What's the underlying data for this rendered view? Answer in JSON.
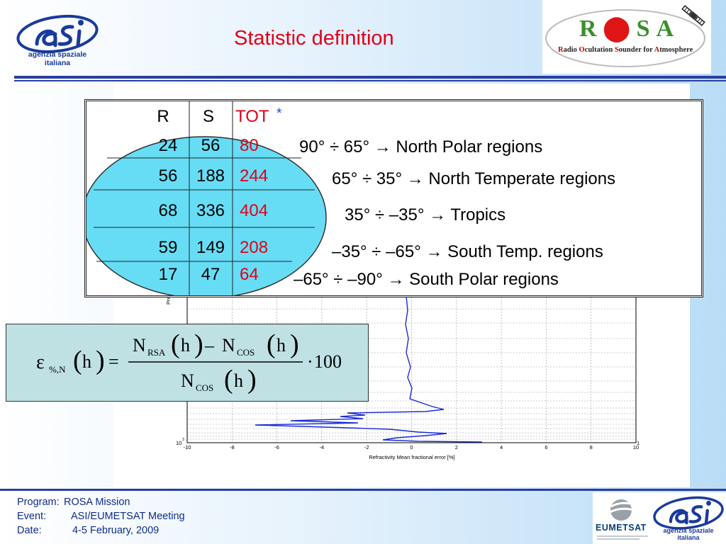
{
  "header": {
    "title": "Statistic definition",
    "asi_logo_lines": [
      "agenzia spaziale",
      "italiana"
    ],
    "rosa": {
      "letters": [
        "R",
        "O",
        "S",
        "A"
      ],
      "subtitle": [
        {
          "cap": "R",
          "rest": "adio "
        },
        {
          "cap": "O",
          "rest": "cultation "
        },
        {
          "cap": "S",
          "rest": "ounder for "
        },
        {
          "cap": "A",
          "rest": "tmosphere"
        }
      ]
    }
  },
  "table": {
    "headers": {
      "r": "R",
      "s": "S",
      "tot": "TOT",
      "star": "*"
    },
    "rows": [
      {
        "r": "24",
        "s": "56",
        "tot": "80"
      },
      {
        "r": "56",
        "s": "188",
        "tot": "244"
      },
      {
        "r": "68",
        "s": "336",
        "tot": "404"
      },
      {
        "r": "59",
        "s": "149",
        "tot": "208"
      },
      {
        "r": "17",
        "s": "47",
        "tot": "64"
      }
    ],
    "regions": [
      "90° ÷ 65° → North Polar regions",
      "65° ÷ 35° → North Temperate regions",
      "35° ÷ –35° → Tropics",
      "–35° ÷ –65° → South Temp. regions",
      "–65° ÷ –90° → South Polar regions"
    ]
  },
  "plot": {
    "xlabel": "Refractivity Mean fractional error [%]",
    "ylabel_visible": "Pre",
    "x_ticks": [
      "-10",
      "-8",
      "-6",
      "-4",
      "-2",
      "0",
      "2",
      "4",
      "6",
      "8",
      "10"
    ],
    "y_tick_base": "10",
    "y_tick_exp": "3",
    "y_tick_right": "1"
  },
  "formula": {
    "epsilon": "ε",
    "eps_sub": "%,N",
    "h": "h",
    "equals": "=",
    "N": "N",
    "sub_rsa": "RSA",
    "sub_cos": "COS",
    "minus": "–",
    "times": "·",
    "hundred": "100"
  },
  "footer": {
    "rows": [
      {
        "label": "Program:",
        "value": "ROSA Mission"
      },
      {
        "label": "Event:",
        "value": "ASI/EUMETSAT Meeting"
      },
      {
        "label": "Date:",
        "value": "4-5 February, 2009"
      }
    ],
    "eumetsat": "EUMETSAT",
    "asi_logo_lines": [
      "agenzia spaziale",
      "italiana"
    ]
  },
  "colors": {
    "title": "#e0001a",
    "ellipse_fill": "#66ddf5",
    "tot_values": "#e0001a",
    "star": "#1d3fd6",
    "curve": "#1a2bd6",
    "formula_bg": "#bfe1e3",
    "footer_text": "#102c8c",
    "rule": "#2a3fa0"
  }
}
